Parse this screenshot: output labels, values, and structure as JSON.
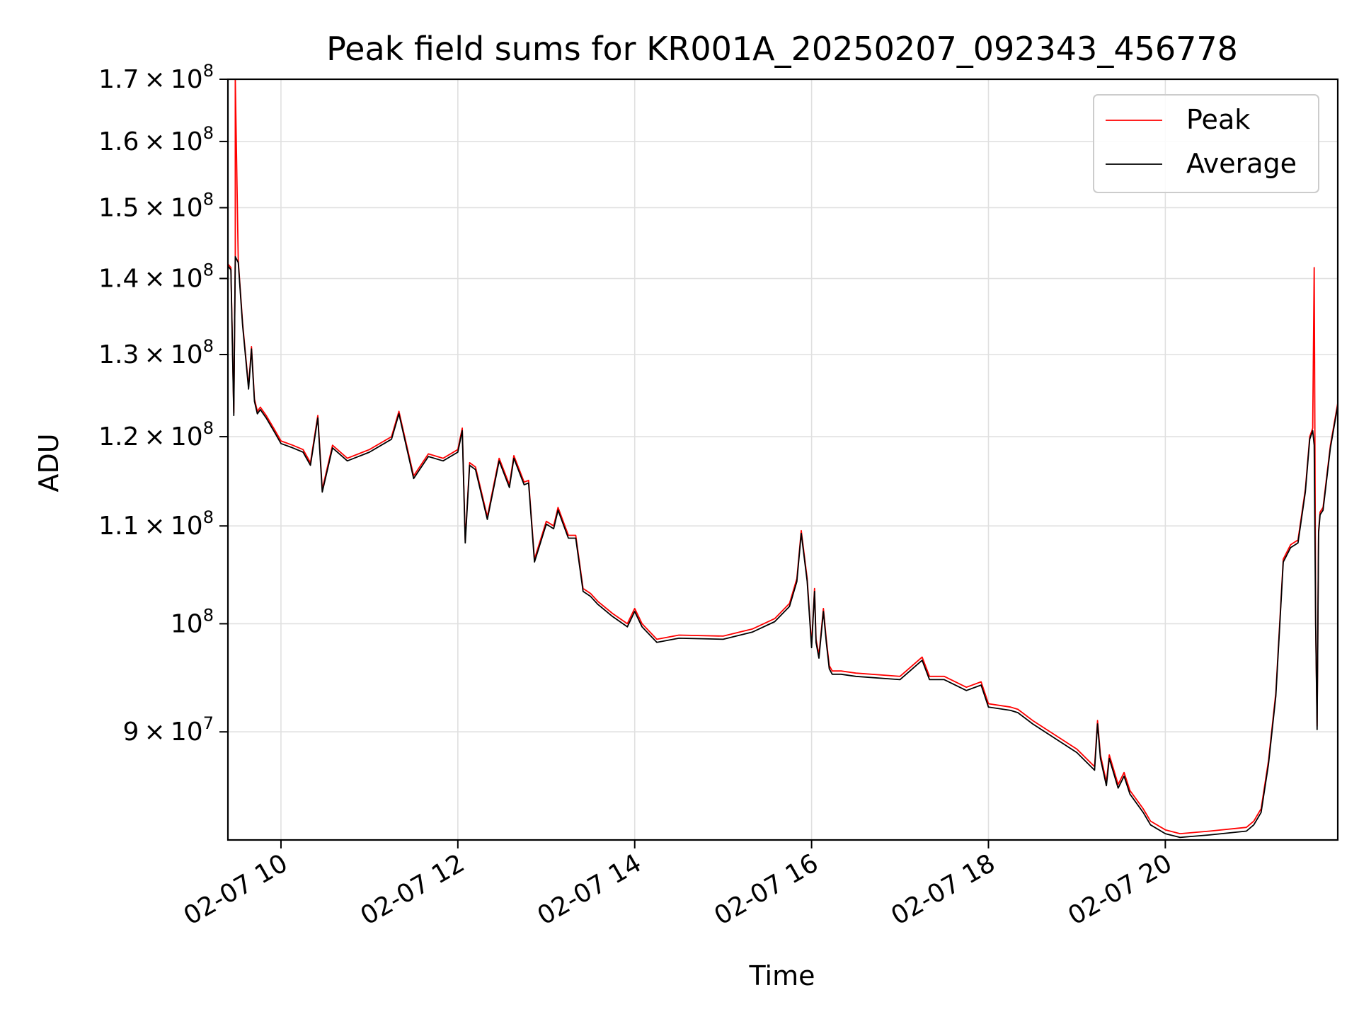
{
  "chart_data": {
    "type": "line",
    "title": "Peak field sums for KR001A_20250207_092343_456778",
    "xlabel": "Time",
    "ylabel": "ADU",
    "yscale": "log",
    "xlim": [
      "2025-02-07 09:24",
      "2025-02-07 21:57"
    ],
    "ylim": [
      81000000.0,
      170000000.0
    ],
    "grid": true,
    "legend": {
      "position": "top-right",
      "entries": [
        "Peak",
        "Average"
      ]
    },
    "colors": {
      "Peak": "#ff0000",
      "Average": "#000000",
      "grid": "#e0e0e0"
    },
    "x_ticks": [
      {
        "value": "2025-02-07 10:00",
        "label": "02-07 10"
      },
      {
        "value": "2025-02-07 12:00",
        "label": "02-07 12"
      },
      {
        "value": "2025-02-07 14:00",
        "label": "02-07 14"
      },
      {
        "value": "2025-02-07 16:00",
        "label": "02-07 16"
      },
      {
        "value": "2025-02-07 18:00",
        "label": "02-07 18"
      },
      {
        "value": "2025-02-07 20:00",
        "label": "02-07 20"
      }
    ],
    "y_ticks": [
      {
        "value": 90000000.0,
        "mantissa": "9",
        "exp": "7",
        "label": "9 × 10^7"
      },
      {
        "value": 100000000.0,
        "mantissa": "",
        "exp": "8",
        "label": "10^8"
      },
      {
        "value": 110000000.0,
        "mantissa": "1.1",
        "exp": "8",
        "label": "1.1 × 10^8"
      },
      {
        "value": 120000000.0,
        "mantissa": "1.2",
        "exp": "8",
        "label": "1.2 × 10^8"
      },
      {
        "value": 130000000.0,
        "mantissa": "1.3",
        "exp": "8",
        "label": "1.3 × 10^8"
      },
      {
        "value": 140000000.0,
        "mantissa": "1.4",
        "exp": "8",
        "label": "1.4 × 10^8"
      },
      {
        "value": 150000000.0,
        "mantissa": "1.5",
        "exp": "8",
        "label": "1.5 × 10^8"
      },
      {
        "value": 160000000.0,
        "mantissa": "1.6",
        "exp": "8",
        "label": "1.6 × 10^8"
      },
      {
        "value": 170000000.0,
        "mantissa": "1.7",
        "exp": "8",
        "label": "1.7 × 10^8"
      }
    ],
    "series": [
      {
        "name": "Peak",
        "x": [
          "2025-02-07 09:24",
          "2025-02-07 09:26",
          "2025-02-07 09:28",
          "2025-02-07 09:29",
          "2025-02-07 09:29",
          "2025-02-07 09:31",
          "2025-02-07 09:34",
          "2025-02-07 09:38",
          "2025-02-07 09:40",
          "2025-02-07 09:42",
          "2025-02-07 09:44",
          "2025-02-07 09:46",
          "2025-02-07 09:50",
          "2025-02-07 09:55",
          "2025-02-07 10:00",
          "2025-02-07 10:08",
          "2025-02-07 10:15",
          "2025-02-07 10:20",
          "2025-02-07 10:25",
          "2025-02-07 10:28",
          "2025-02-07 10:35",
          "2025-02-07 10:45",
          "2025-02-07 11:00",
          "2025-02-07 11:15",
          "2025-02-07 11:20",
          "2025-02-07 11:30",
          "2025-02-07 11:40",
          "2025-02-07 11:50",
          "2025-02-07 12:00",
          "2025-02-07 12:03",
          "2025-02-07 12:05",
          "2025-02-07 12:08",
          "2025-02-07 12:12",
          "2025-02-07 12:20",
          "2025-02-07 12:25",
          "2025-02-07 12:28",
          "2025-02-07 12:35",
          "2025-02-07 12:38",
          "2025-02-07 12:45",
          "2025-02-07 12:48",
          "2025-02-07 12:52",
          "2025-02-07 13:00",
          "2025-02-07 13:05",
          "2025-02-07 13:08",
          "2025-02-07 13:15",
          "2025-02-07 13:20",
          "2025-02-07 13:25",
          "2025-02-07 13:30",
          "2025-02-07 13:35",
          "2025-02-07 13:45",
          "2025-02-07 13:55",
          "2025-02-07 14:00",
          "2025-02-07 14:05",
          "2025-02-07 14:15",
          "2025-02-07 14:30",
          "2025-02-07 15:00",
          "2025-02-07 15:20",
          "2025-02-07 15:35",
          "2025-02-07 15:45",
          "2025-02-07 15:50",
          "2025-02-07 15:53",
          "2025-02-07 15:57",
          "2025-02-07 16:00",
          "2025-02-07 16:02",
          "2025-02-07 16:03",
          "2025-02-07 16:05",
          "2025-02-07 16:08",
          "2025-02-07 16:10",
          "2025-02-07 16:12",
          "2025-02-07 16:14",
          "2025-02-07 16:20",
          "2025-02-07 16:30",
          "2025-02-07 17:00",
          "2025-02-07 17:15",
          "2025-02-07 17:20",
          "2025-02-07 17:30",
          "2025-02-07 17:45",
          "2025-02-07 17:55",
          "2025-02-07 18:00",
          "2025-02-07 18:15",
          "2025-02-07 18:20",
          "2025-02-07 18:30",
          "2025-02-07 19:00",
          "2025-02-07 19:12",
          "2025-02-07 19:14",
          "2025-02-07 19:16",
          "2025-02-07 19:20",
          "2025-02-07 19:22",
          "2025-02-07 19:28",
          "2025-02-07 19:32",
          "2025-02-07 19:36",
          "2025-02-07 19:45",
          "2025-02-07 19:50",
          "2025-02-07 20:00",
          "2025-02-07 20:10",
          "2025-02-07 20:30",
          "2025-02-07 20:55",
          "2025-02-07 21:00",
          "2025-02-07 21:05",
          "2025-02-07 21:10",
          "2025-02-07 21:15",
          "2025-02-07 21:20",
          "2025-02-07 21:25",
          "2025-02-07 21:30",
          "2025-02-07 21:35",
          "2025-02-07 21:38",
          "2025-02-07 21:40",
          "2025-02-07 21:41",
          "2025-02-07 21:42",
          "2025-02-07 21:43",
          "2025-02-07 21:44",
          "2025-02-07 21:45",
          "2025-02-07 21:47",
          "2025-02-07 21:52",
          "2025-02-07 21:57"
        ],
        "values": [
          142000000.0,
          141500000.0,
          122800000.0,
          143000000.0,
          170000000.0,
          142500000.0,
          134000000.0,
          126000000.0,
          131000000.0,
          124500000.0,
          123000000.0,
          123500000.0,
          122500000.0,
          121000000.0,
          119500000.0,
          119000000.0,
          118500000.0,
          117000000.0,
          122500000.0,
          114000000.0,
          119000000.0,
          117500000.0,
          118500000.0,
          120000000.0,
          123000000.0,
          115500000.0,
          118000000.0,
          117500000.0,
          118500000.0,
          121000000.0,
          108500000.0,
          117000000.0,
          116500000.0,
          111000000.0,
          115000000.0,
          117500000.0,
          114500000.0,
          117800000.0,
          114800000.0,
          115000000.0,
          106500000.0,
          110500000.0,
          110000000.0,
          112000000.0,
          109000000.0,
          109000000.0,
          103500000.0,
          103000000.0,
          102200000.0,
          101000000.0,
          100000000.0,
          101500000.0,
          100000000.0,
          98500000.0,
          98900000.0,
          98800000.0,
          99500000.0,
          100500000.0,
          102000000.0,
          104500000.0,
          109500000.0,
          104500000.0,
          98000000.0,
          103500000.0,
          98500000.0,
          97000000.0,
          101500000.0,
          98500000.0,
          96000000.0,
          95500000.0,
          95500000.0,
          95300000.0,
          95000000.0,
          96800000.0,
          95000000.0,
          95000000.0,
          94000000.0,
          94500000.0,
          92500000.0,
          92200000.0,
          92000000.0,
          91000000.0,
          88500000.0,
          87000000.0,
          91000000.0,
          88000000.0,
          85700000.0,
          88000000.0,
          85500000.0,
          86500000.0,
          85000000.0,
          83500000.0,
          82500000.0,
          81800000.0,
          81500000.0,
          81700000.0,
          82000000.0,
          82500000.0,
          83500000.0,
          87500000.0,
          93500000.0,
          106500000.0,
          108000000.0,
          108500000.0,
          114000000.0,
          120000000.0,
          121000000.0,
          141500000.0,
          100000000.0,
          90500000.0,
          109500000.0,
          111500000.0,
          112000000.0,
          119000000.0,
          124000000.0
        ]
      },
      {
        "name": "Average",
        "x": [
          "2025-02-07 09:24",
          "2025-02-07 09:26",
          "2025-02-07 09:28",
          "2025-02-07 09:29",
          "2025-02-07 09:29",
          "2025-02-07 09:31",
          "2025-02-07 09:34",
          "2025-02-07 09:38",
          "2025-02-07 09:40",
          "2025-02-07 09:42",
          "2025-02-07 09:44",
          "2025-02-07 09:46",
          "2025-02-07 09:50",
          "2025-02-07 09:55",
          "2025-02-07 10:00",
          "2025-02-07 10:08",
          "2025-02-07 10:15",
          "2025-02-07 10:20",
          "2025-02-07 10:25",
          "2025-02-07 10:28",
          "2025-02-07 10:35",
          "2025-02-07 10:45",
          "2025-02-07 11:00",
          "2025-02-07 11:15",
          "2025-02-07 11:20",
          "2025-02-07 11:30",
          "2025-02-07 11:40",
          "2025-02-07 11:50",
          "2025-02-07 12:00",
          "2025-02-07 12:03",
          "2025-02-07 12:05",
          "2025-02-07 12:08",
          "2025-02-07 12:12",
          "2025-02-07 12:20",
          "2025-02-07 12:25",
          "2025-02-07 12:28",
          "2025-02-07 12:35",
          "2025-02-07 12:38",
          "2025-02-07 12:45",
          "2025-02-07 12:48",
          "2025-02-07 12:52",
          "2025-02-07 13:00",
          "2025-02-07 13:05",
          "2025-02-07 13:08",
          "2025-02-07 13:15",
          "2025-02-07 13:20",
          "2025-02-07 13:25",
          "2025-02-07 13:30",
          "2025-02-07 13:35",
          "2025-02-07 13:45",
          "2025-02-07 13:55",
          "2025-02-07 14:00",
          "2025-02-07 14:05",
          "2025-02-07 14:15",
          "2025-02-07 14:30",
          "2025-02-07 15:00",
          "2025-02-07 15:20",
          "2025-02-07 15:35",
          "2025-02-07 15:45",
          "2025-02-07 15:50",
          "2025-02-07 15:53",
          "2025-02-07 15:57",
          "2025-02-07 16:00",
          "2025-02-07 16:02",
          "2025-02-07 16:03",
          "2025-02-07 16:05",
          "2025-02-07 16:08",
          "2025-02-07 16:10",
          "2025-02-07 16:12",
          "2025-02-07 16:14",
          "2025-02-07 16:20",
          "2025-02-07 16:30",
          "2025-02-07 17:00",
          "2025-02-07 17:15",
          "2025-02-07 17:20",
          "2025-02-07 17:30",
          "2025-02-07 17:45",
          "2025-02-07 17:55",
          "2025-02-07 18:00",
          "2025-02-07 18:15",
          "2025-02-07 18:20",
          "2025-02-07 18:30",
          "2025-02-07 19:00",
          "2025-02-07 19:12",
          "2025-02-07 19:14",
          "2025-02-07 19:16",
          "2025-02-07 19:20",
          "2025-02-07 19:22",
          "2025-02-07 19:28",
          "2025-02-07 19:32",
          "2025-02-07 19:36",
          "2025-02-07 19:45",
          "2025-02-07 19:50",
          "2025-02-07 20:00",
          "2025-02-07 20:10",
          "2025-02-07 20:30",
          "2025-02-07 20:55",
          "2025-02-07 21:00",
          "2025-02-07 21:05",
          "2025-02-07 21:10",
          "2025-02-07 21:15",
          "2025-02-07 21:20",
          "2025-02-07 21:25",
          "2025-02-07 21:30",
          "2025-02-07 21:35",
          "2025-02-07 21:38",
          "2025-02-07 21:40",
          "2025-02-07 21:41",
          "2025-02-07 21:42",
          "2025-02-07 21:43",
          "2025-02-07 21:44",
          "2025-02-07 21:45",
          "2025-02-07 21:47",
          "2025-02-07 21:52",
          "2025-02-07 21:57"
        ],
        "values": [
          141700000.0,
          141200000.0,
          122500000.0,
          142700000.0,
          143000000.0,
          142200000.0,
          133700000.0,
          125700000.0,
          130700000.0,
          124200000.0,
          122700000.0,
          123200000.0,
          122200000.0,
          120700000.0,
          119200000.0,
          118700000.0,
          118200000.0,
          116700000.0,
          122200000.0,
          113700000.0,
          118700000.0,
          117200000.0,
          118200000.0,
          119700000.0,
          122700000.0,
          115200000.0,
          117700000.0,
          117200000.0,
          118200000.0,
          120700000.0,
          108200000.0,
          116700000.0,
          116200000.0,
          110700000.0,
          114700000.0,
          117200000.0,
          114200000.0,
          117500000.0,
          114500000.0,
          114700000.0,
          106200000.0,
          110200000.0,
          109700000.0,
          111700000.0,
          108700000.0,
          108700000.0,
          103200000.0,
          102700000.0,
          101900000.0,
          100700000.0,
          99700000.0,
          101200000.0,
          99700000.0,
          98200000.0,
          98600000.0,
          98500000.0,
          99200000.0,
          100200000.0,
          101700000.0,
          104200000.0,
          109200000.0,
          104200000.0,
          97700000.0,
          103200000.0,
          98200000.0,
          96700000.0,
          101200000.0,
          98200000.0,
          95700000.0,
          95200000.0,
          95200000.0,
          95000000.0,
          94700000.0,
          96500000.0,
          94700000.0,
          94700000.0,
          93700000.0,
          94200000.0,
          92200000.0,
          91900000.0,
          91700000.0,
          90700000.0,
          88200000.0,
          86700000.0,
          90700000.0,
          87700000.0,
          85400000.0,
          87700000.0,
          85200000.0,
          86200000.0,
          84700000.0,
          83200000.0,
          82200000.0,
          81500000.0,
          81200000.0,
          81400000.0,
          81700000.0,
          82200000.0,
          83200000.0,
          87200000.0,
          93200000.0,
          106200000.0,
          107700000.0,
          108200000.0,
          113700000.0,
          119700000.0,
          120700000.0,
          119000000.0,
          99700000.0,
          90200000.0,
          109200000.0,
          111200000.0,
          111700000.0,
          118700000.0,
          123700000.0
        ]
      }
    ]
  }
}
